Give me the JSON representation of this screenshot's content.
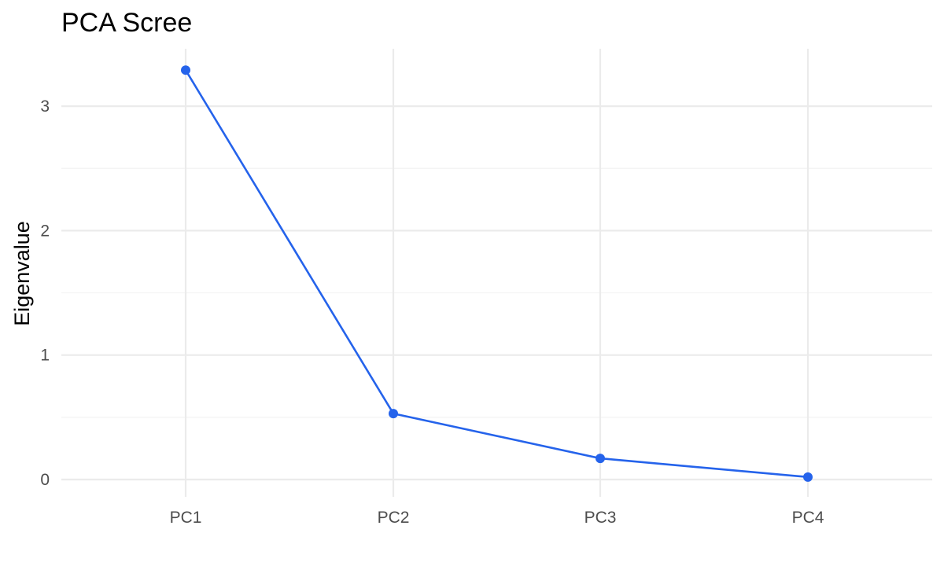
{
  "chart_data": {
    "type": "line",
    "title": "PCA Scree",
    "xlabel": "",
    "ylabel": "Eigenvalue",
    "categories": [
      "PC1",
      "PC2",
      "PC3",
      "PC4"
    ],
    "series": [
      {
        "values": [
          3.29,
          0.53,
          0.17,
          0.02
        ],
        "color": "#2563eb"
      }
    ],
    "ylim": [
      0,
      3.3
    ],
    "yticks": [
      "0",
      "1",
      "2",
      "3"
    ],
    "grid": true,
    "legend": "none"
  }
}
